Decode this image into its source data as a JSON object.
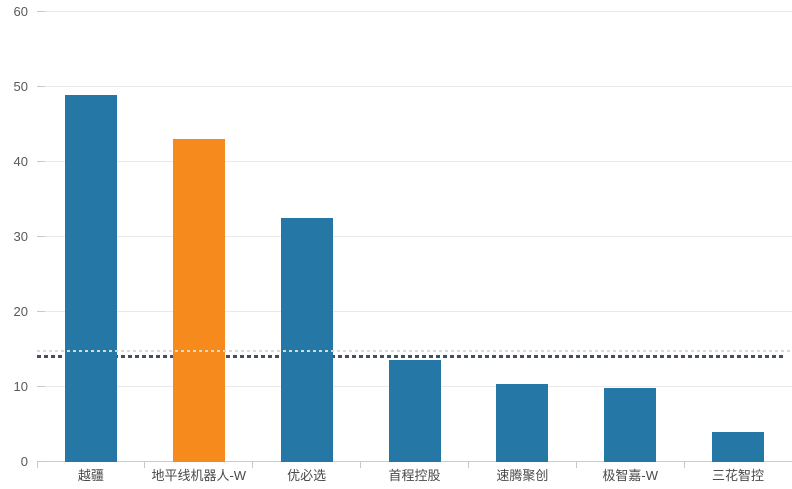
{
  "chart_data": {
    "type": "bar",
    "title": "",
    "xlabel": "",
    "ylabel": "",
    "categories": [
      "越疆",
      "地平线机器人-W",
      "优必选",
      "首程控股",
      "速腾聚创",
      "极智嘉-W",
      "三花智控"
    ],
    "values": [
      48.9,
      43.0,
      32.5,
      13.5,
      10.4,
      9.8,
      3.9
    ],
    "highlight_index": 1,
    "highlighted_category": "地平线机器人-W",
    "ylim": [
      0,
      60
    ],
    "yticks": [
      0,
      10,
      20,
      30,
      40,
      50,
      60
    ],
    "ytick_labels": [
      "0",
      "10",
      "20",
      "30",
      "40",
      "50",
      "60"
    ],
    "grid": "horizontal",
    "legend": "none",
    "reference_lines": [
      {
        "name": "light-dotted-reference-line",
        "value": 14.7,
        "color": "#ddd8d1",
        "layer": "above-bars"
      },
      {
        "name": "dark-dotted-reference-line",
        "value": 14.0,
        "color": "#454f63",
        "layer": "below-bars"
      }
    ],
    "colors": {
      "bar_default": "#2577a5",
      "bar_highlight": "#f68a1d",
      "gridline": "#e9e9e9",
      "axis_line": "#cccccc",
      "tick": "#c8c8c8",
      "y_label_text": "#595959",
      "x_label_text": "#4a4a4a",
      "background": "#ffffff"
    }
  }
}
